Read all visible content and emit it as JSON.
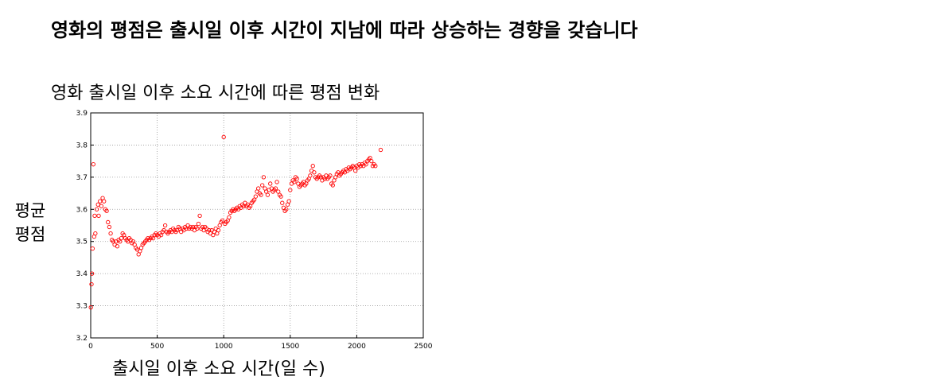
{
  "headline": "영화의 평점은 출시일 이후 시간이 지남에 따라 상승하는 경향을 갖습니다",
  "chart_data": {
    "type": "scatter",
    "title": "영화 출시일 이후 소요 시간에 따른 평점 변화",
    "xlabel": "출시일 이후 소요 시간(일 수)",
    "ylabel_lines": [
      "평균",
      "평점"
    ],
    "xlim": [
      0,
      2500
    ],
    "ylim": [
      3.2,
      3.9
    ],
    "xticks": [
      0,
      500,
      1000,
      1500,
      2000,
      2500
    ],
    "yticks": [
      3.2,
      3.3,
      3.4,
      3.5,
      3.6,
      3.7,
      3.8,
      3.9
    ],
    "grid": true,
    "marker_color": "#ff0000",
    "marker": "open-circle",
    "points": [
      [
        1,
        3.295
      ],
      [
        6,
        3.367
      ],
      [
        10,
        3.4
      ],
      [
        14,
        3.478
      ],
      [
        20,
        3.74
      ],
      [
        26,
        3.515
      ],
      [
        30,
        3.58
      ],
      [
        35,
        3.525
      ],
      [
        45,
        3.6
      ],
      [
        55,
        3.615
      ],
      [
        60,
        3.58
      ],
      [
        70,
        3.625
      ],
      [
        80,
        3.61
      ],
      [
        90,
        3.635
      ],
      [
        100,
        3.625
      ],
      [
        110,
        3.6
      ],
      [
        120,
        3.595
      ],
      [
        130,
        3.56
      ],
      [
        140,
        3.545
      ],
      [
        150,
        3.525
      ],
      [
        160,
        3.505
      ],
      [
        170,
        3.5
      ],
      [
        180,
        3.49
      ],
      [
        190,
        3.5
      ],
      [
        200,
        3.485
      ],
      [
        210,
        3.505
      ],
      [
        220,
        3.5
      ],
      [
        230,
        3.51
      ],
      [
        240,
        3.525
      ],
      [
        250,
        3.52
      ],
      [
        260,
        3.51
      ],
      [
        270,
        3.505
      ],
      [
        280,
        3.5
      ],
      [
        290,
        3.51
      ],
      [
        300,
        3.505
      ],
      [
        310,
        3.495
      ],
      [
        320,
        3.5
      ],
      [
        330,
        3.49
      ],
      [
        340,
        3.48
      ],
      [
        350,
        3.475
      ],
      [
        360,
        3.46
      ],
      [
        370,
        3.47
      ],
      [
        380,
        3.48
      ],
      [
        390,
        3.49
      ],
      [
        400,
        3.495
      ],
      [
        410,
        3.5
      ],
      [
        420,
        3.505
      ],
      [
        430,
        3.51
      ],
      [
        440,
        3.505
      ],
      [
        450,
        3.51
      ],
      [
        460,
        3.515
      ],
      [
        470,
        3.51
      ],
      [
        480,
        3.52
      ],
      [
        490,
        3.525
      ],
      [
        500,
        3.52
      ],
      [
        510,
        3.515
      ],
      [
        520,
        3.525
      ],
      [
        530,
        3.52
      ],
      [
        540,
        3.53
      ],
      [
        550,
        3.535
      ],
      [
        560,
        3.55
      ],
      [
        570,
        3.53
      ],
      [
        580,
        3.525
      ],
      [
        590,
        3.53
      ],
      [
        600,
        3.535
      ],
      [
        610,
        3.53
      ],
      [
        620,
        3.54
      ],
      [
        630,
        3.535
      ],
      [
        640,
        3.53
      ],
      [
        650,
        3.535
      ],
      [
        660,
        3.545
      ],
      [
        670,
        3.54
      ],
      [
        680,
        3.53
      ],
      [
        690,
        3.54
      ],
      [
        700,
        3.535
      ],
      [
        710,
        3.545
      ],
      [
        720,
        3.54
      ],
      [
        730,
        3.55
      ],
      [
        740,
        3.54
      ],
      [
        750,
        3.545
      ],
      [
        760,
        3.54
      ],
      [
        770,
        3.545
      ],
      [
        780,
        3.535
      ],
      [
        790,
        3.545
      ],
      [
        800,
        3.54
      ],
      [
        810,
        3.555
      ],
      [
        820,
        3.58
      ],
      [
        830,
        3.54
      ],
      [
        840,
        3.545
      ],
      [
        850,
        3.535
      ],
      [
        860,
        3.545
      ],
      [
        870,
        3.54
      ],
      [
        880,
        3.53
      ],
      [
        890,
        3.535
      ],
      [
        900,
        3.525
      ],
      [
        910,
        3.535
      ],
      [
        920,
        3.52
      ],
      [
        930,
        3.53
      ],
      [
        940,
        3.54
      ],
      [
        950,
        3.525
      ],
      [
        960,
        3.535
      ],
      [
        970,
        3.55
      ],
      [
        980,
        3.56
      ],
      [
        990,
        3.565
      ],
      [
        1000,
        3.825
      ],
      [
        1010,
        3.555
      ],
      [
        1020,
        3.56
      ],
      [
        1030,
        3.565
      ],
      [
        1040,
        3.575
      ],
      [
        1050,
        3.59
      ],
      [
        1060,
        3.595
      ],
      [
        1070,
        3.6
      ],
      [
        1080,
        3.595
      ],
      [
        1090,
        3.6
      ],
      [
        1100,
        3.605
      ],
      [
        1110,
        3.6
      ],
      [
        1120,
        3.61
      ],
      [
        1130,
        3.605
      ],
      [
        1140,
        3.615
      ],
      [
        1150,
        3.61
      ],
      [
        1160,
        3.62
      ],
      [
        1170,
        3.61
      ],
      [
        1180,
        3.615
      ],
      [
        1190,
        3.605
      ],
      [
        1200,
        3.61
      ],
      [
        1210,
        3.62
      ],
      [
        1220,
        3.625
      ],
      [
        1230,
        3.63
      ],
      [
        1240,
        3.64
      ],
      [
        1250,
        3.655
      ],
      [
        1260,
        3.665
      ],
      [
        1270,
        3.65
      ],
      [
        1280,
        3.645
      ],
      [
        1290,
        3.675
      ],
      [
        1300,
        3.7
      ],
      [
        1310,
        3.665
      ],
      [
        1320,
        3.655
      ],
      [
        1330,
        3.645
      ],
      [
        1340,
        3.66
      ],
      [
        1350,
        3.68
      ],
      [
        1360,
        3.665
      ],
      [
        1370,
        3.655
      ],
      [
        1380,
        3.66
      ],
      [
        1390,
        3.665
      ],
      [
        1400,
        3.685
      ],
      [
        1410,
        3.655
      ],
      [
        1420,
        3.645
      ],
      [
        1430,
        3.64
      ],
      [
        1440,
        3.62
      ],
      [
        1450,
        3.605
      ],
      [
        1460,
        3.595
      ],
      [
        1470,
        3.6
      ],
      [
        1480,
        3.615
      ],
      [
        1490,
        3.625
      ],
      [
        1500,
        3.66
      ],
      [
        1510,
        3.68
      ],
      [
        1520,
        3.69
      ],
      [
        1530,
        3.685
      ],
      [
        1540,
        3.7
      ],
      [
        1550,
        3.695
      ],
      [
        1560,
        3.68
      ],
      [
        1570,
        3.67
      ],
      [
        1580,
        3.675
      ],
      [
        1590,
        3.68
      ],
      [
        1600,
        3.685
      ],
      [
        1610,
        3.675
      ],
      [
        1620,
        3.68
      ],
      [
        1630,
        3.69
      ],
      [
        1640,
        3.695
      ],
      [
        1650,
        3.705
      ],
      [
        1660,
        3.72
      ],
      [
        1670,
        3.735
      ],
      [
        1680,
        3.715
      ],
      [
        1690,
        3.7
      ],
      [
        1700,
        3.695
      ],
      [
        1710,
        3.7
      ],
      [
        1720,
        3.705
      ],
      [
        1730,
        3.7
      ],
      [
        1740,
        3.69
      ],
      [
        1750,
        3.7
      ],
      [
        1760,
        3.695
      ],
      [
        1770,
        3.705
      ],
      [
        1780,
        3.695
      ],
      [
        1790,
        3.7
      ],
      [
        1800,
        3.705
      ],
      [
        1810,
        3.68
      ],
      [
        1820,
        3.675
      ],
      [
        1830,
        3.69
      ],
      [
        1840,
        3.7
      ],
      [
        1850,
        3.71
      ],
      [
        1860,
        3.715
      ],
      [
        1870,
        3.705
      ],
      [
        1880,
        3.71
      ],
      [
        1890,
        3.715
      ],
      [
        1900,
        3.72
      ],
      [
        1910,
        3.715
      ],
      [
        1920,
        3.725
      ],
      [
        1930,
        3.72
      ],
      [
        1940,
        3.73
      ],
      [
        1950,
        3.725
      ],
      [
        1960,
        3.73
      ],
      [
        1970,
        3.735
      ],
      [
        1980,
        3.73
      ],
      [
        1990,
        3.72
      ],
      [
        2000,
        3.735
      ],
      [
        2010,
        3.73
      ],
      [
        2020,
        3.74
      ],
      [
        2030,
        3.735
      ],
      [
        2040,
        3.74
      ],
      [
        2050,
        3.735
      ],
      [
        2060,
        3.745
      ],
      [
        2070,
        3.74
      ],
      [
        2080,
        3.75
      ],
      [
        2090,
        3.755
      ],
      [
        2100,
        3.76
      ],
      [
        2110,
        3.75
      ],
      [
        2120,
        3.735
      ],
      [
        2130,
        3.74
      ],
      [
        2140,
        3.735
      ],
      [
        2180,
        3.785
      ]
    ]
  }
}
